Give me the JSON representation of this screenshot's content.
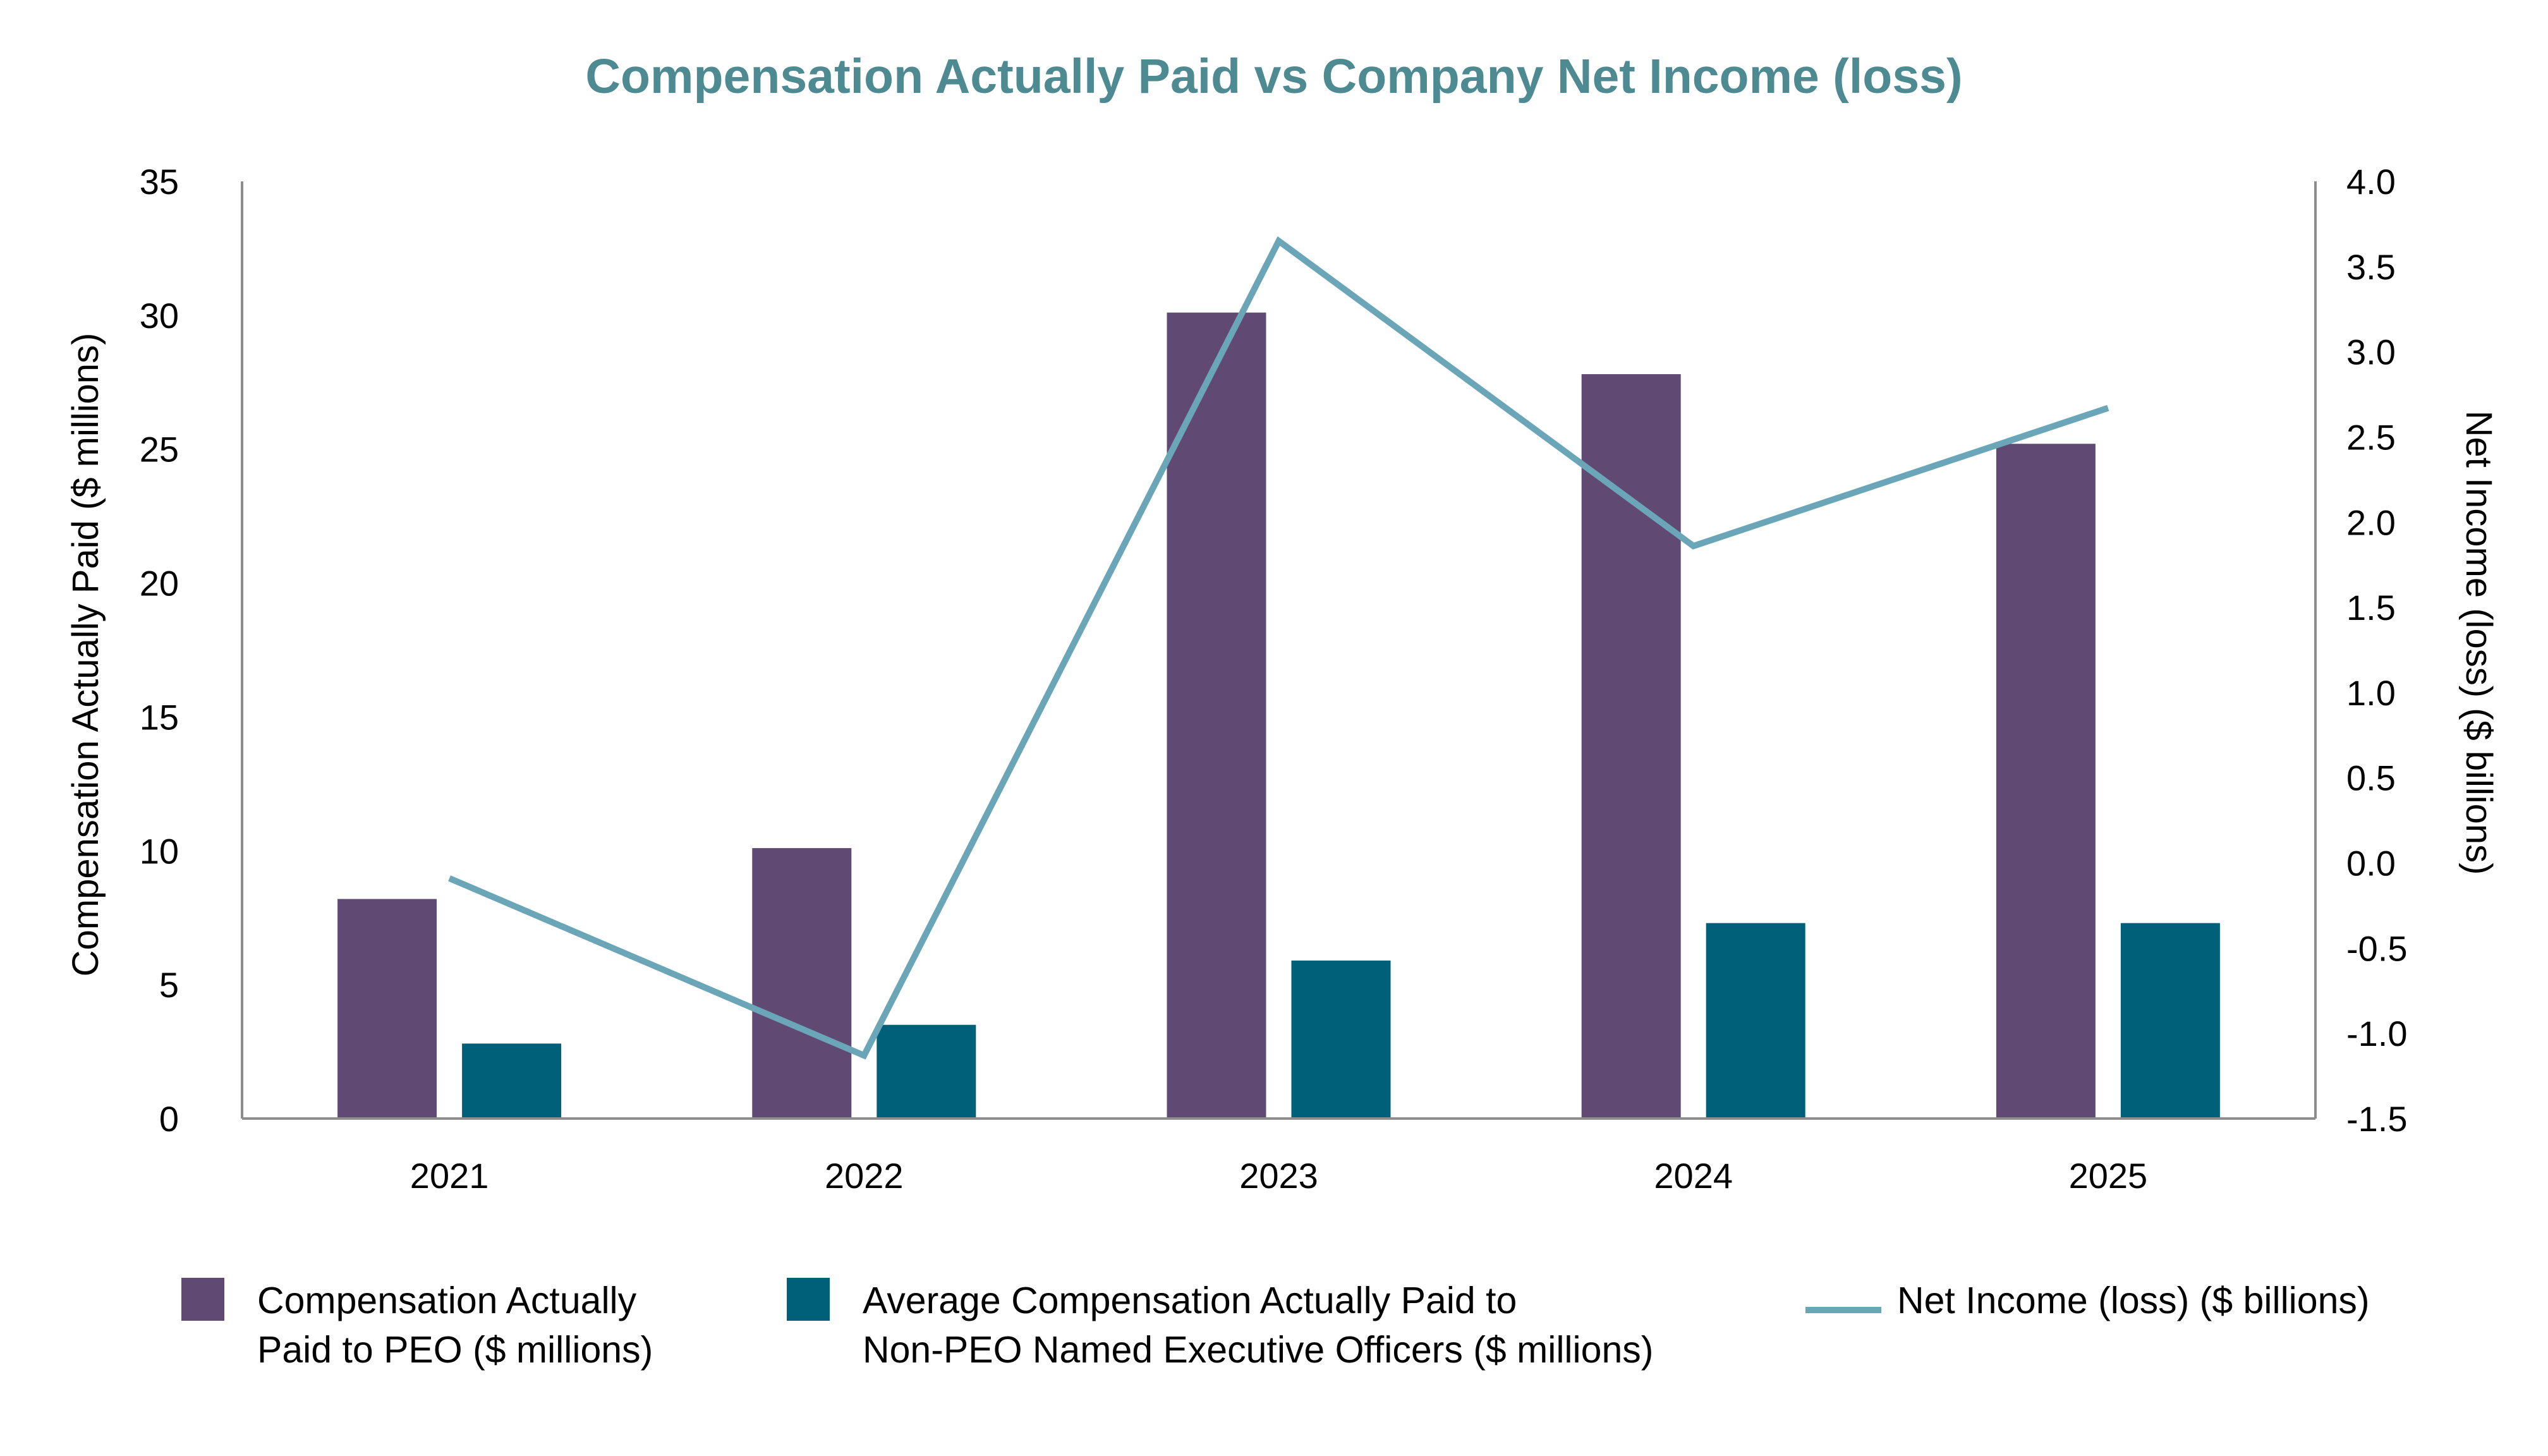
{
  "chart_data": {
    "type": "bar",
    "title": "Compensation Actually Paid vs Company Net Income (loss)",
    "categories": [
      "2021",
      "2022",
      "2023",
      "2024",
      "2025"
    ],
    "y_left": {
      "label": "Compensation Actually Paid ($ millions)",
      "ylim": [
        0,
        35
      ],
      "ticks": [
        "0",
        "5",
        "10",
        "15",
        "20",
        "25",
        "30",
        "35"
      ]
    },
    "y_right": {
      "label": "Net Income (loss) ($ billions)",
      "ylim": [
        -1.5,
        4.0
      ],
      "ticks": [
        "-1.5",
        "-1.0",
        "-0.5",
        "0.0",
        "0.5",
        "1.0",
        "1.5",
        "2.0",
        "2.5",
        "3.0",
        "3.5",
        "4.0"
      ]
    },
    "series": [
      {
        "name": "Compensation Actually Paid to PEO ($ millions)",
        "legend_lines": [
          "Compensation Actually",
          "Paid to PEO ($ millions)"
        ],
        "type": "bar",
        "axis": "left",
        "color": "#604a73",
        "values": [
          8.2,
          10.1,
          30.1,
          27.8,
          25.2
        ]
      },
      {
        "name": "Average Compensation Actually Paid to Non-PEO Named Executive Officers ($ millions)",
        "legend_lines": [
          "Average Compensation Actually Paid to",
          "Non-PEO Named Executive Officers ($ millions)"
        ],
        "type": "bar",
        "axis": "left",
        "color": "#00607a",
        "values": [
          2.8,
          3.5,
          5.9,
          7.3,
          7.3
        ]
      },
      {
        "name": "Net Income (loss) ($ billions)",
        "legend_lines": [
          "Net Income (loss) ($ billions)"
        ],
        "type": "line",
        "axis": "right",
        "color": "#6ba6b8",
        "values": [
          -0.09,
          -1.13,
          3.65,
          1.86,
          2.67
        ]
      }
    ],
    "grid": false,
    "legend_position": "bottom"
  }
}
